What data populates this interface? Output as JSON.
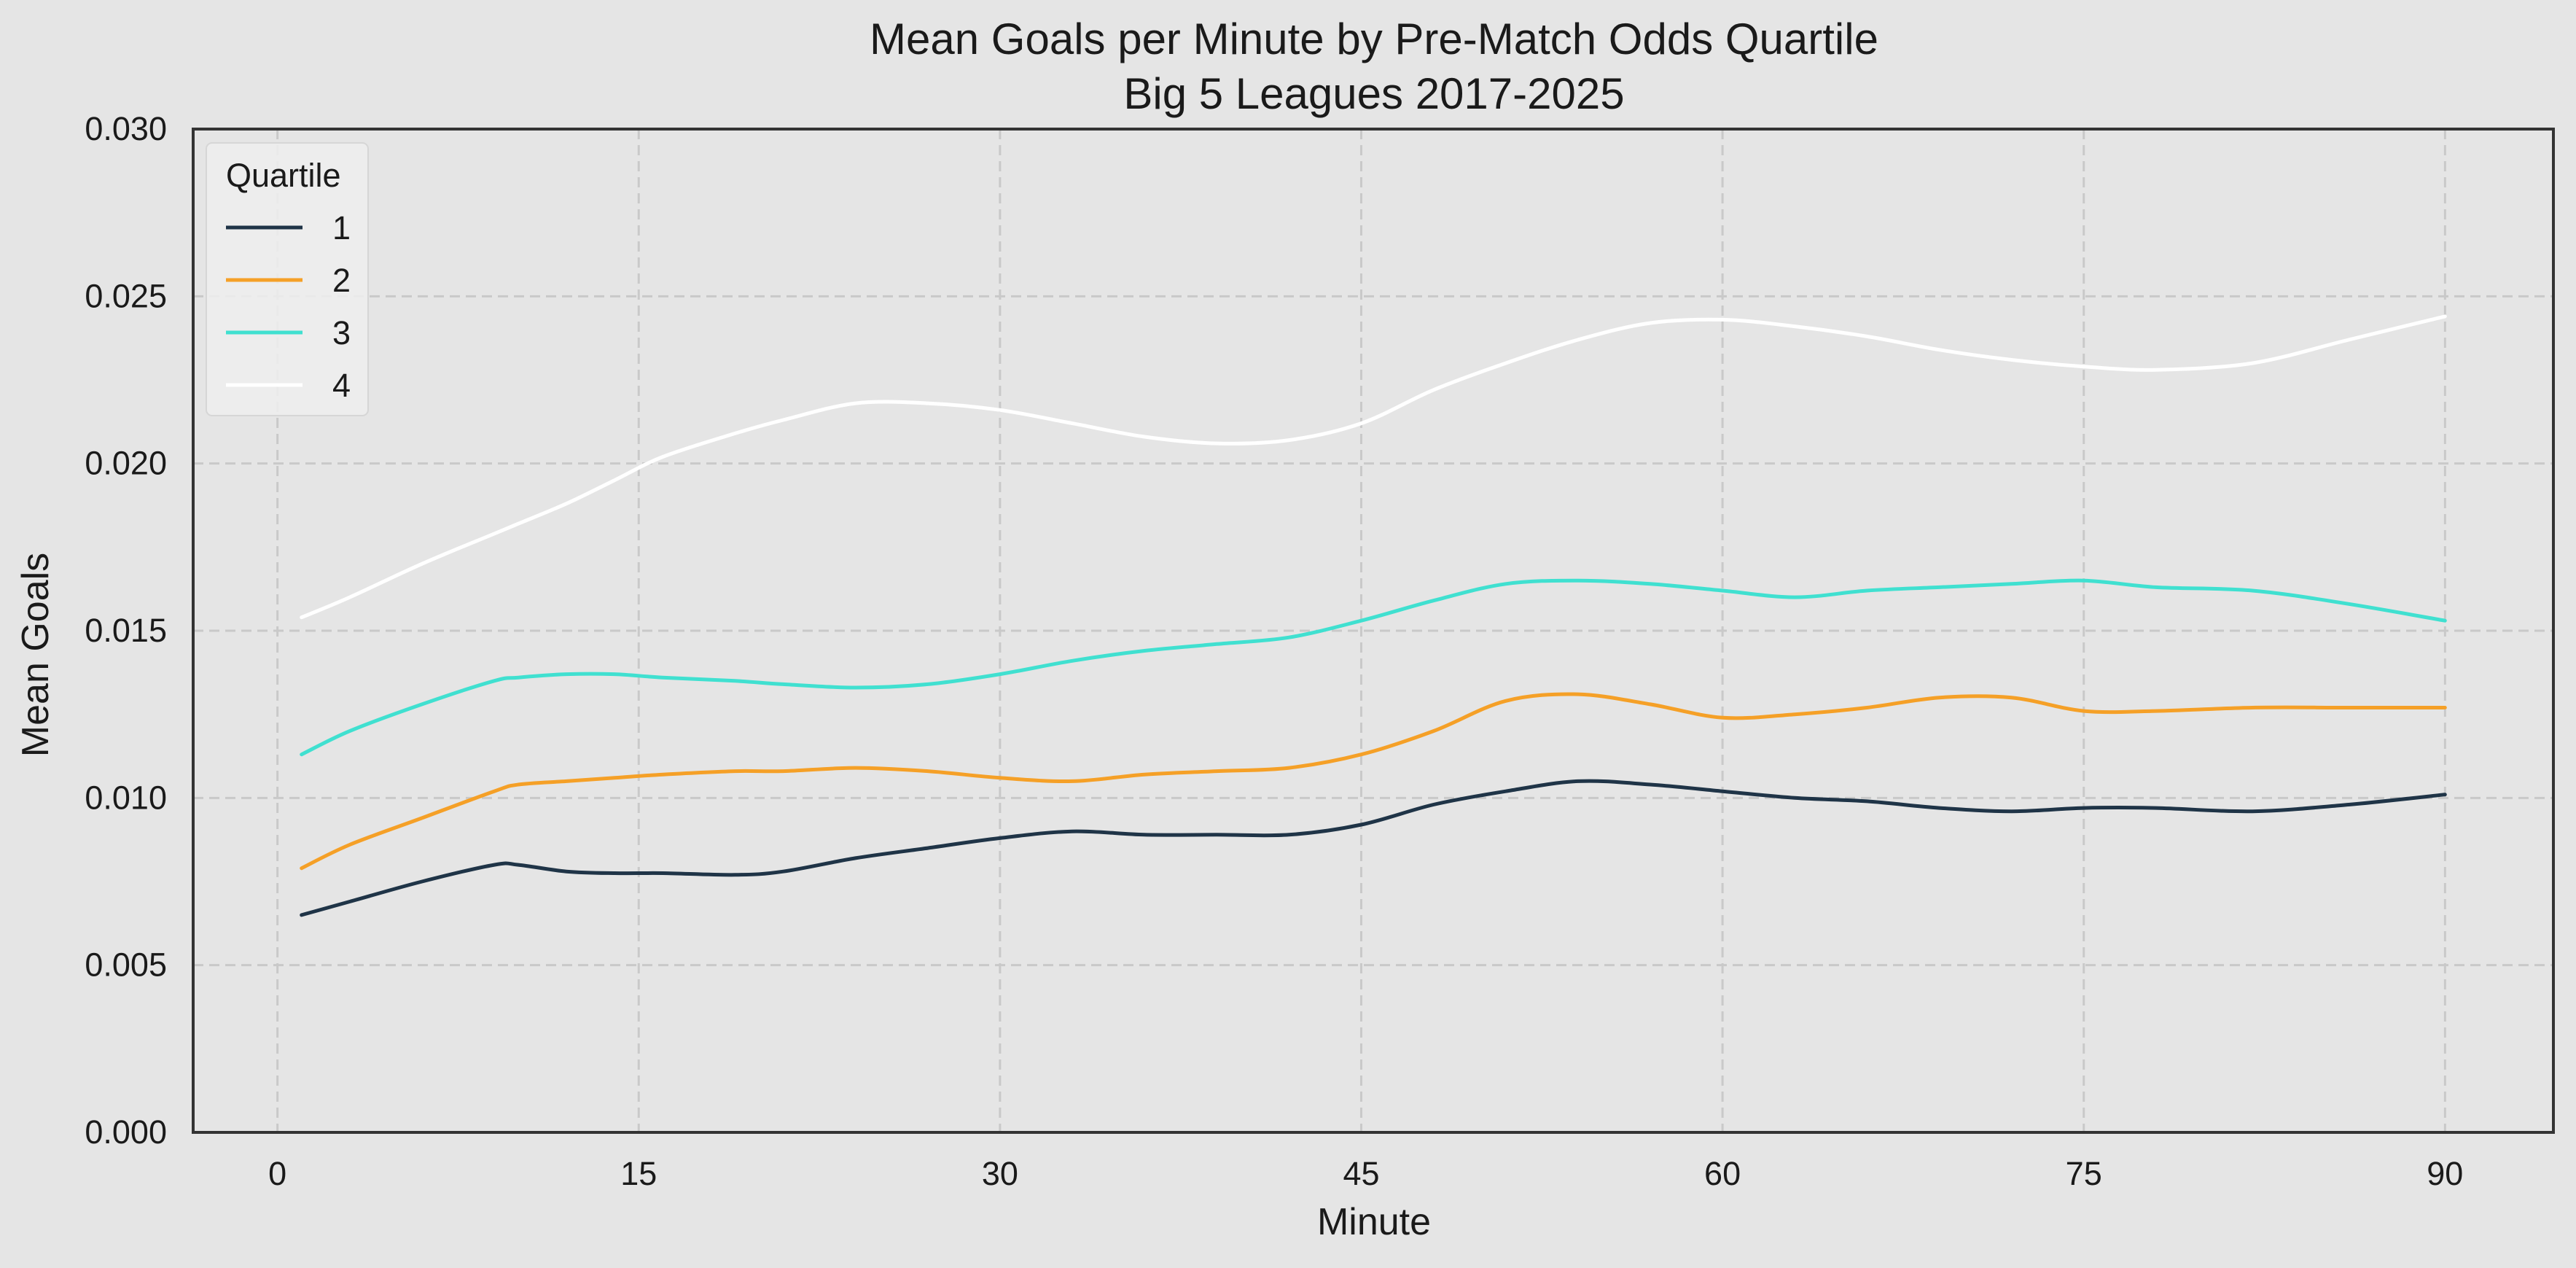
{
  "chart_data": {
    "type": "line",
    "title": "Mean Goals per Minute by Pre-Match Odds Quartile",
    "subtitle": "Big 5 Leagues 2017-2025",
    "xlabel": "Minute",
    "ylabel": "Mean Goals",
    "xlim": [
      -3.5,
      94.5
    ],
    "ylim": [
      0.0,
      0.03
    ],
    "xticks": [
      0,
      15,
      30,
      45,
      60,
      75,
      90
    ],
    "yticks": [
      0.0,
      0.005,
      0.01,
      0.015,
      0.02,
      0.025,
      0.03
    ],
    "ytick_labels": [
      "0.000",
      "0.005",
      "0.010",
      "0.015",
      "0.020",
      "0.025",
      "0.030"
    ],
    "grid": true,
    "background": "#e5e5e5",
    "legend": {
      "title": "Quartile",
      "placement": "top-left"
    },
    "x": [
      1,
      3,
      6,
      9,
      10,
      12,
      14,
      16,
      19,
      21,
      24,
      27,
      30,
      33,
      36,
      39,
      42,
      45,
      48,
      51,
      54,
      57,
      60,
      63,
      66,
      69,
      72,
      75,
      78,
      82,
      86,
      90
    ],
    "series": [
      {
        "name": "1",
        "color": "#1f3447",
        "values": [
          0.0065,
          0.0069,
          0.0075,
          0.008,
          0.008,
          0.0078,
          0.00775,
          0.00775,
          0.0077,
          0.0078,
          0.0082,
          0.0085,
          0.0088,
          0.009,
          0.0089,
          0.0089,
          0.0089,
          0.0092,
          0.0098,
          0.0102,
          0.0105,
          0.0104,
          0.0102,
          0.01,
          0.0099,
          0.0097,
          0.0096,
          0.0097,
          0.0097,
          0.0096,
          0.0098,
          0.0101
        ]
      },
      {
        "name": "2",
        "color": "#f5a027",
        "values": [
          0.0079,
          0.0086,
          0.0094,
          0.0102,
          0.0104,
          0.0105,
          0.0106,
          0.0107,
          0.0108,
          0.0108,
          0.0109,
          0.0108,
          0.0106,
          0.0105,
          0.0107,
          0.0108,
          0.0109,
          0.0113,
          0.012,
          0.0129,
          0.0131,
          0.0128,
          0.0124,
          0.0125,
          0.0127,
          0.013,
          0.013,
          0.0126,
          0.0126,
          0.0127,
          0.0127,
          0.0127
        ]
      },
      {
        "name": "3",
        "color": "#40e0d0",
        "values": [
          0.0113,
          0.012,
          0.0128,
          0.0135,
          0.0136,
          0.0137,
          0.0137,
          0.0136,
          0.0135,
          0.0134,
          0.0133,
          0.0134,
          0.0137,
          0.0141,
          0.0144,
          0.0146,
          0.0148,
          0.0153,
          0.0159,
          0.0164,
          0.0165,
          0.0164,
          0.0162,
          0.016,
          0.0162,
          0.0163,
          0.0164,
          0.0165,
          0.0163,
          0.0162,
          0.0158,
          0.0153
        ]
      },
      {
        "name": "4",
        "color": "#ffffff",
        "values": [
          0.0154,
          0.016,
          0.017,
          0.0179,
          0.0182,
          0.0188,
          0.0195,
          0.0202,
          0.0209,
          0.0213,
          0.0218,
          0.0218,
          0.0216,
          0.0212,
          0.0208,
          0.0206,
          0.0207,
          0.0212,
          0.0222,
          0.023,
          0.0237,
          0.0242,
          0.0243,
          0.0241,
          0.0238,
          0.0234,
          0.0231,
          0.0229,
          0.0228,
          0.023,
          0.0237,
          0.0244
        ]
      }
    ]
  }
}
